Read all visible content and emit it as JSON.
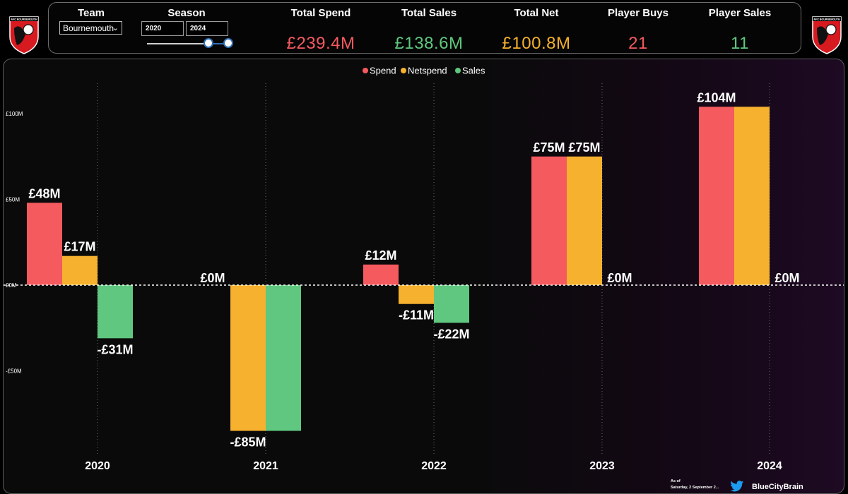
{
  "header": {
    "team_label": "Team",
    "team_value": "Bournemouth",
    "season_label": "Season",
    "season_start": "2020",
    "season_end": "2024",
    "season_range_fraction": [
      0.75,
      1.0
    ],
    "kpis": [
      {
        "label": "Total Spend",
        "value": "£239.4M",
        "color": "#f55a5f"
      },
      {
        "label": "Total Sales",
        "value": "£138.6M",
        "color": "#5fc77f"
      },
      {
        "label": "Total Net",
        "value": "£100.8M",
        "color": "#f6b12e"
      },
      {
        "label": "Player Buys",
        "value": "21",
        "color": "#f55a5f"
      },
      {
        "label": "Player Sales",
        "value": "11",
        "color": "#5fc77f"
      }
    ],
    "logo_text": "AFC BOURNEMOUTH"
  },
  "chart_data": {
    "type": "bar",
    "categories": [
      "2020",
      "2021",
      "2022",
      "2023",
      "2024"
    ],
    "series": [
      {
        "name": "Spend",
        "color": "#f55a5f",
        "values": [
          48,
          0,
          12,
          75,
          104
        ],
        "labels": [
          "£48M",
          "£0M",
          "£12M",
          "£75M",
          "£104M"
        ]
      },
      {
        "name": "Netspend",
        "color": "#f6b12e",
        "values": [
          17,
          -85,
          -11,
          75,
          104
        ],
        "labels": [
          "£17M",
          "-£85M",
          "-£11M",
          "£75M",
          ""
        ]
      },
      {
        "name": "Sales",
        "color": "#5fc77f",
        "values": [
          -31,
          -85,
          -22,
          0,
          0
        ],
        "labels": [
          "-£31M",
          "",
          "-£22M",
          "£0M",
          "£0M"
        ]
      }
    ],
    "y_ticks": [
      100,
      50,
      0,
      -50
    ],
    "y_tick_labels": [
      "£100M",
      "£50M",
      "£0M",
      "-£50M"
    ],
    "ylim": [
      -110,
      125
    ],
    "legend_position": "top-center",
    "grid": "vertical dotted per category; dotted zero line"
  },
  "footer": {
    "as_of_label": "As of",
    "as_of_date": "Saturday, 2 September 2...",
    "twitter_handle": "BlueCityBrain"
  }
}
